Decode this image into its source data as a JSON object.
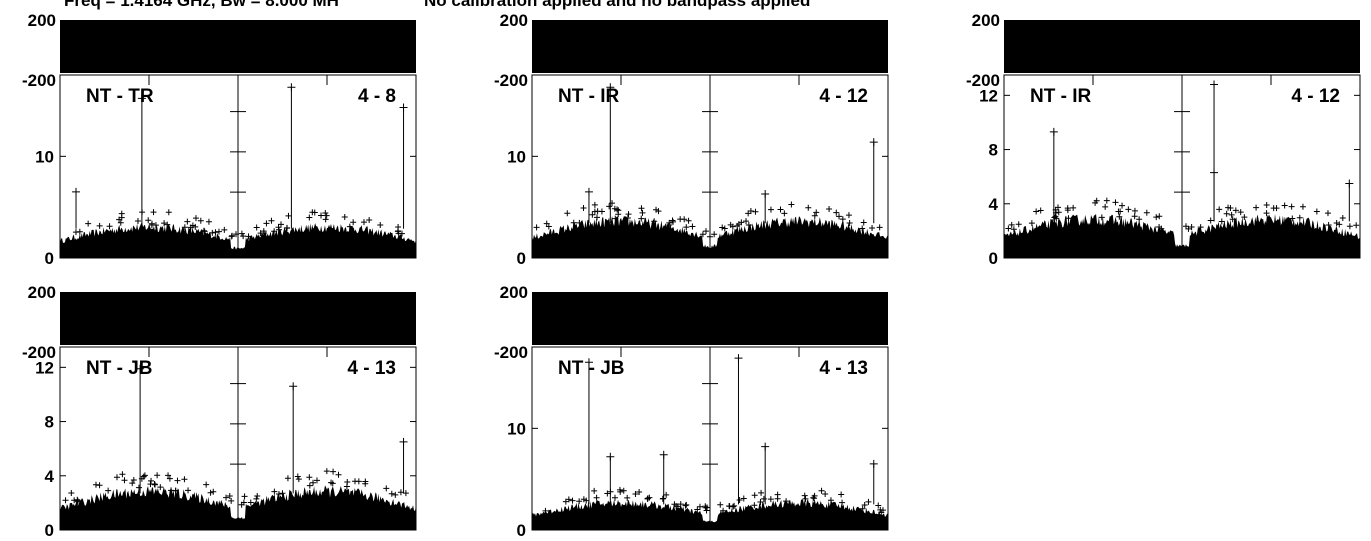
{
  "header": {
    "freq_text": "Freq = 1.4164 GHz, Bw = 8.000 MH",
    "calib_text": "No calibration applied and no bandpass applied"
  },
  "colors": {
    "ink": "#000000",
    "background": "#ffffff"
  },
  "chart_data": [
    {
      "type": "scatter",
      "baseline": "NT - TR",
      "antennas": "4 - 8",
      "phase_axis": {
        "ylim": [
          -200,
          200
        ],
        "tick_labels": [
          "200",
          "-200"
        ]
      },
      "amp_axis": {
        "ylim": [
          0,
          18
        ],
        "tick_labels": [
          "0",
          "10"
        ],
        "ticks": [
          0,
          10
        ]
      },
      "baseline_level": 3.2,
      "spikes": [
        {
          "x": 0.045,
          "y": 6.5
        },
        {
          "x": 0.23,
          "y": 15.7
        },
        {
          "x": 0.65,
          "y": 16.8
        },
        {
          "x": 0.965,
          "y": 14.8
        }
      ]
    },
    {
      "type": "scatter",
      "baseline": "NT - IR",
      "antennas": "4 - 12",
      "phase_axis": {
        "ylim": [
          -200,
          200
        ],
        "tick_labels": [
          "200",
          "-200"
        ]
      },
      "amp_axis": {
        "ylim": [
          0,
          18
        ],
        "tick_labels": [
          "0",
          "10"
        ],
        "ticks": [
          0,
          10
        ]
      },
      "baseline_level": 3.8,
      "spikes": [
        {
          "x": 0.16,
          "y": 6.5
        },
        {
          "x": 0.22,
          "y": 16.8
        },
        {
          "x": 0.655,
          "y": 6.3
        },
        {
          "x": 0.96,
          "y": 11.4
        }
      ]
    },
    {
      "type": "scatter",
      "baseline": "NT - IR",
      "antennas": "4 - 12",
      "phase_axis": {
        "ylim": [
          -200,
          200
        ],
        "tick_labels": [
          "200",
          "-200"
        ]
      },
      "amp_axis": {
        "ylim": [
          0,
          13.5
        ],
        "tick_labels": [
          "0",
          "4",
          "8",
          "12"
        ],
        "ticks": [
          0,
          4,
          8,
          12
        ]
      },
      "baseline_level": 3.0,
      "spikes": [
        {
          "x": 0.14,
          "y": 9.3
        },
        {
          "x": 0.59,
          "y": 6.3
        },
        {
          "x": 0.59,
          "y": 12.8
        },
        {
          "x": 0.97,
          "y": 5.5
        }
      ]
    },
    {
      "type": "scatter",
      "baseline": "NT - JB",
      "antennas": "4 - 13",
      "phase_axis": {
        "ylim": [
          -200,
          200
        ],
        "tick_labels": [
          "200",
          "-200"
        ]
      },
      "amp_axis": {
        "ylim": [
          0,
          13.5
        ],
        "tick_labels": [
          "0",
          "4",
          "8",
          "12"
        ],
        "ticks": [
          0,
          4,
          8,
          12
        ]
      },
      "baseline_level": 3.0,
      "spikes": [
        {
          "x": 0.225,
          "y": 11.9
        },
        {
          "x": 0.655,
          "y": 10.6
        },
        {
          "x": 0.965,
          "y": 6.5
        }
      ]
    },
    {
      "type": "scatter",
      "baseline": "NT - JB",
      "antennas": "4 - 13",
      "phase_axis": {
        "ylim": [
          -200,
          200
        ],
        "tick_labels": [
          "200",
          "-200"
        ]
      },
      "amp_axis": {
        "ylim": [
          0,
          18
        ],
        "tick_labels": [
          "0",
          "10"
        ],
        "ticks": [
          0,
          10
        ]
      },
      "baseline_level": 2.8,
      "spikes": [
        {
          "x": 0.16,
          "y": 16.5
        },
        {
          "x": 0.22,
          "y": 7.2
        },
        {
          "x": 0.37,
          "y": 7.4
        },
        {
          "x": 0.58,
          "y": 16.9
        },
        {
          "x": 0.655,
          "y": 8.2
        },
        {
          "x": 0.96,
          "y": 6.5
        }
      ]
    }
  ]
}
